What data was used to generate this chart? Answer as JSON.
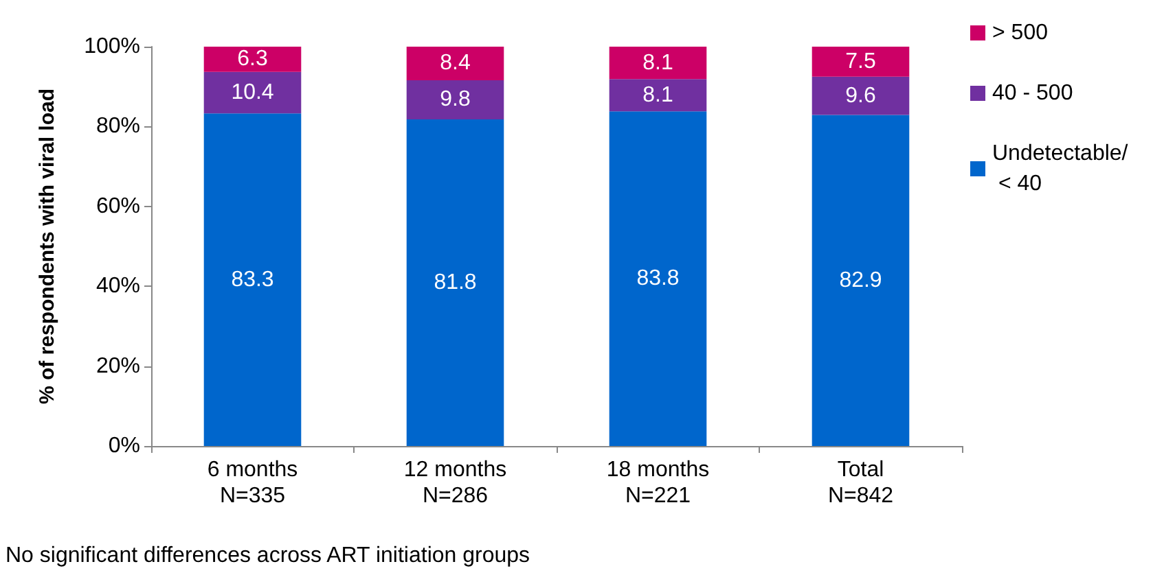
{
  "chart_data": {
    "type": "bar",
    "stacked": true,
    "ylabel": "% of respondents with viral load",
    "categories": [
      "6 months\nN=335",
      "12 months\nN=286",
      "18 months\nN=221",
      "Total\nN=842"
    ],
    "series": [
      {
        "name": "Undetectable/ < 40",
        "color": "#0066cc",
        "values": [
          83.3,
          81.8,
          83.8,
          82.9
        ]
      },
      {
        "name": "40 - 500",
        "color": "#7030a0",
        "values": [
          10.4,
          9.8,
          8.1,
          9.6
        ]
      },
      {
        "name": "> 500",
        "color": "#cc0066",
        "values": [
          6.3,
          8.4,
          8.1,
          7.5
        ]
      }
    ],
    "ylim": [
      0,
      100
    ],
    "yticks": [
      {
        "value": 0,
        "label": "0%"
      },
      {
        "value": 20,
        "label": "20%"
      },
      {
        "value": 40,
        "label": "40%"
      },
      {
        "value": 60,
        "label": "60%"
      },
      {
        "value": 80,
        "label": "80%"
      },
      {
        "value": 100,
        "label": "100%"
      }
    ],
    "grid": false,
    "legend": "top right",
    "data_labels": true,
    "annotations": [
      "No significant differences across ART initiation groups"
    ]
  }
}
